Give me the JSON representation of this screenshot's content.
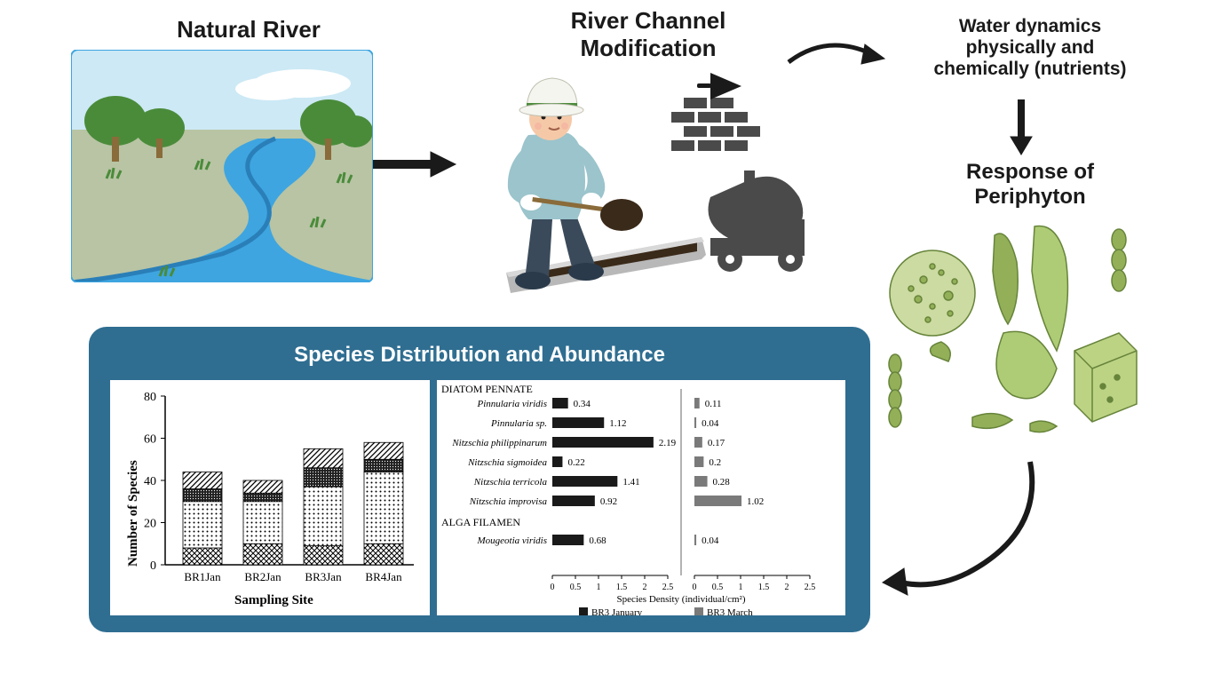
{
  "titles": {
    "natural_river": "Natural River",
    "channel_mod": "River Channel\nModification",
    "dynamics": "Water dynamics\nphysically and\nchemically (nutrients)",
    "response": "Response of\nPeriphyton"
  },
  "panel": {
    "title": "Species Distribution and Abundance",
    "bg": "#2f6e91",
    "title_color": "#ffffff",
    "title_fontsize": 24
  },
  "bar_chart": {
    "type": "stacked-bar",
    "categories": [
      "BR1Jan",
      "BR2Jan",
      "BR3Jan",
      "BR4Jan"
    ],
    "ylabel": "Number of Species",
    "xlabel": "Sampling Site",
    "ylim": [
      0,
      80
    ],
    "ytick_step": 20,
    "stacks": [
      {
        "values": [
          8,
          10,
          9,
          10
        ],
        "pattern": "cross"
      },
      {
        "values": [
          22,
          20,
          28,
          34
        ],
        "pattern": "dots"
      },
      {
        "values": [
          6,
          4,
          9,
          6
        ],
        "pattern": "dense"
      },
      {
        "values": [
          8,
          6,
          9,
          8
        ],
        "pattern": "diag"
      }
    ],
    "axis_color": "#000000",
    "bg": "#ffffff",
    "label_fontsize": 14
  },
  "species_chart": {
    "type": "bar-paired-horizontal",
    "group1_header": "DIATOM PENNATE",
    "group2_header": "ALGA FILAMEN",
    "species": [
      "Pinnularia viridis",
      "Pinnularia sp.",
      "Nitzschia philippinarum",
      "Nitzschia sigmoidea",
      "Nitzschia terricola",
      "Nitzschia improvisa",
      "Mougeotia viridis"
    ],
    "left_values": [
      0.34,
      1.12,
      2.19,
      0.22,
      1.41,
      0.92,
      0.68
    ],
    "right_values": [
      0.11,
      0.04,
      0.17,
      0.2,
      0.28,
      1.02,
      0.04
    ],
    "xlabel": "Species Density (individual/cm²)",
    "xlim": [
      0,
      2.5
    ],
    "xtick_step": 0.5,
    "left_color": "#1a1a1a",
    "right_color": "#7a7a7a",
    "legend": [
      "BR3 January",
      "BR3 March"
    ],
    "font": "Times New Roman",
    "label_fontsize": 12
  },
  "colors": {
    "text": "#1a1a1a",
    "river_water": "#3ea5e0",
    "river_bank": "#b8c4a4",
    "sky": "#cce9f5",
    "tree_green": "#4a8b3a",
    "tree_trunk": "#8a6b3a",
    "worker_jacket": "#9bc4cc",
    "worker_pants": "#3a4a5a",
    "helmet": "#f5f5f0",
    "helmet_stripe": "#4a8b3a",
    "skin": "#f5c9a8",
    "construction_gray": "#4a4a4a",
    "periphyton_green": "#8aaa4a",
    "periphyton_dark": "#5a7a2a"
  },
  "titles_style": {
    "main_fontsize": 26,
    "sub_fontsize": 22,
    "small_fontsize": 20
  },
  "arrows": {
    "a1": {
      "from": "natural_river",
      "to": "channel_mod"
    },
    "a2": {
      "from": "channel_mod",
      "to": "dynamics"
    },
    "a3": {
      "from": "dynamics",
      "to": "response"
    },
    "a4": {
      "from": "periphyton_illus",
      "to": "panel"
    }
  }
}
